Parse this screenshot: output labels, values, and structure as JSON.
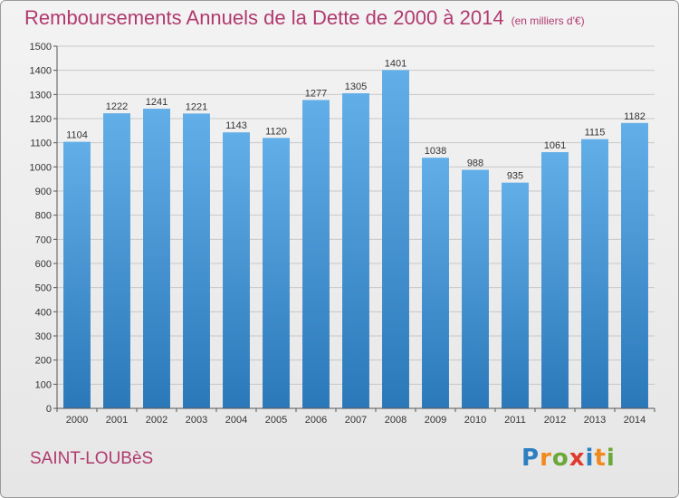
{
  "title": "Remboursements Annuels de la Dette de 2000 à 2014",
  "subtitle": "(en milliers d'€)",
  "town": "SAINT-LOUBèS",
  "logo": {
    "letters": [
      "P",
      "r",
      "o",
      "x",
      "i",
      "t",
      "i"
    ],
    "colors": [
      "#2d7fc1",
      "#f08a1c",
      "#6aa83a",
      "#e03a2f",
      "#2d7fc1",
      "#f08a1c",
      "#6aa83a"
    ]
  },
  "colors": {
    "bar_top": "#62aee8",
    "bar_bottom": "#2b78b9",
    "title": "#b03a6e",
    "grid": "#c8c8c8"
  },
  "chart_data": {
    "type": "bar",
    "categories": [
      "2000",
      "2001",
      "2002",
      "2003",
      "2004",
      "2005",
      "2006",
      "2007",
      "2008",
      "2009",
      "2010",
      "2011",
      "2012",
      "2013",
      "2014"
    ],
    "values": [
      1104,
      1222,
      1241,
      1221,
      1143,
      1120,
      1277,
      1305,
      1401,
      1038,
      988,
      935,
      1061,
      1115,
      1182
    ],
    "title": "Remboursements Annuels de la Dette de 2000 à 2014",
    "xlabel": "",
    "ylabel": "",
    "ylim": [
      0,
      1500
    ],
    "yticks": [
      0,
      100,
      200,
      300,
      400,
      500,
      600,
      700,
      800,
      900,
      1000,
      1100,
      1200,
      1300,
      1400,
      1500
    ],
    "grid": true,
    "legend": "none"
  }
}
